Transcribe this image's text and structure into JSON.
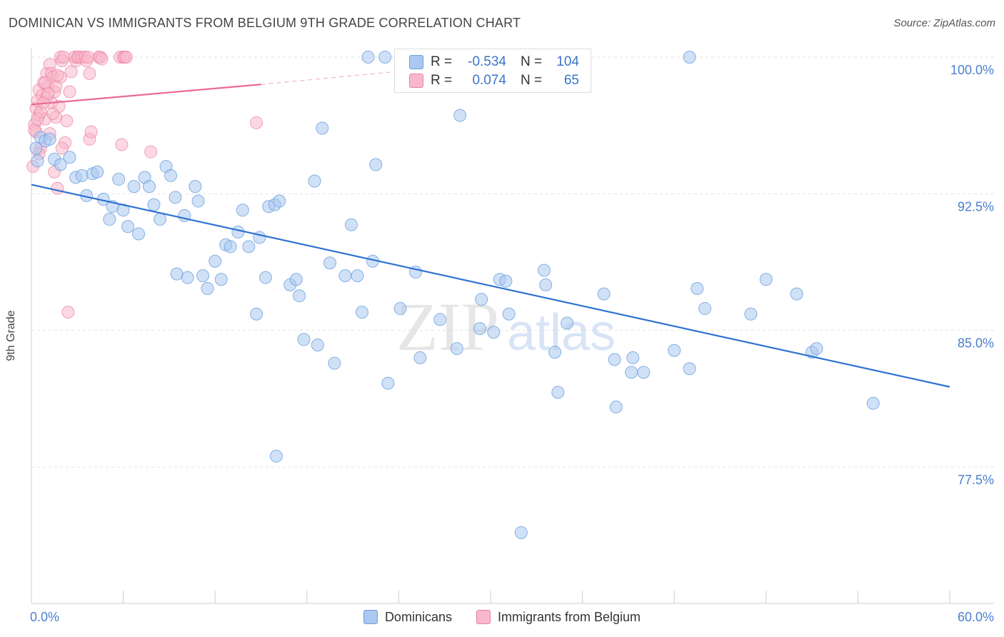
{
  "title": "DOMINICAN VS IMMIGRANTS FROM BELGIUM 9TH GRADE CORRELATION CHART",
  "source": "Source: ZipAtlas.com",
  "watermark": {
    "part1": "ZIP",
    "part2": "atlas"
  },
  "colors": {
    "blue_fill": "#aac8f0",
    "blue_stroke": "#6c9fdc",
    "blue_line": "#2f73d0",
    "pink_fill": "#f7b8cb",
    "pink_stroke": "#ec7fa2",
    "pink_line": "#ea6a94",
    "tick_label": "#4a7fcf",
    "grid": "#e3e3e3"
  },
  "stats_legend": [
    {
      "r_label": "R =",
      "r_value": "-0.534",
      "n_label": "N =",
      "n_value": "104"
    },
    {
      "r_label": "R =",
      "r_value": "0.074",
      "n_label": "N =",
      "n_value": "65"
    }
  ],
  "chart_data": {
    "type": "scatter",
    "title": "DOMINICAN VS IMMIGRANTS FROM BELGIUM 9TH GRADE CORRELATION CHART",
    "xlabel": "",
    "ylabel": "9th Grade",
    "xlim": [
      0,
      60
    ],
    "ylim": [
      70.5,
      101.2
    ],
    "x_tick_labels": [
      "0.0%",
      "60.0%"
    ],
    "y_ticks": [
      77.5,
      85.0,
      92.5,
      100.0
    ],
    "y_tick_labels": [
      "77.5%",
      "85.0%",
      "92.5%",
      "100.0%"
    ],
    "grid": true,
    "legend_position": "bottom",
    "series": [
      {
        "name": "Dominicans",
        "color": "#aac8f0",
        "trend": {
          "x": [
            0,
            60
          ],
          "y": [
            93.0,
            81.9
          ]
        },
        "points": [
          [
            0.3,
            95.0
          ],
          [
            0.4,
            94.3
          ],
          [
            0.6,
            95.6
          ],
          [
            0.9,
            95.4
          ],
          [
            1.2,
            95.5
          ],
          [
            1.5,
            94.4
          ],
          [
            1.9,
            94.1
          ],
          [
            2.5,
            94.5
          ],
          [
            2.9,
            93.4
          ],
          [
            3.3,
            93.5
          ],
          [
            3.6,
            92.4
          ],
          [
            4.0,
            93.6
          ],
          [
            4.3,
            93.7
          ],
          [
            4.7,
            92.2
          ],
          [
            5.1,
            91.1
          ],
          [
            5.3,
            91.8
          ],
          [
            5.7,
            93.3
          ],
          [
            6.0,
            91.6
          ],
          [
            6.3,
            90.7
          ],
          [
            6.7,
            92.9
          ],
          [
            7.0,
            90.3
          ],
          [
            7.4,
            93.4
          ],
          [
            7.7,
            92.9
          ],
          [
            8.0,
            91.9
          ],
          [
            8.4,
            91.1
          ],
          [
            8.8,
            94.0
          ],
          [
            9.1,
            93.5
          ],
          [
            9.4,
            92.3
          ],
          [
            9.5,
            88.1
          ],
          [
            10.0,
            91.3
          ],
          [
            10.2,
            87.9
          ],
          [
            10.7,
            92.9
          ],
          [
            10.9,
            92.1
          ],
          [
            11.2,
            88.0
          ],
          [
            11.5,
            87.3
          ],
          [
            12.0,
            88.8
          ],
          [
            12.4,
            87.8
          ],
          [
            12.7,
            89.7
          ],
          [
            13.0,
            89.6
          ],
          [
            13.5,
            90.4
          ],
          [
            13.8,
            91.6
          ],
          [
            14.2,
            89.6
          ],
          [
            14.7,
            85.9
          ],
          [
            14.9,
            90.1
          ],
          [
            15.3,
            87.9
          ],
          [
            15.5,
            91.8
          ],
          [
            15.9,
            91.9
          ],
          [
            16.2,
            92.1
          ],
          [
            16.0,
            78.1
          ],
          [
            16.9,
            87.5
          ],
          [
            17.3,
            87.8
          ],
          [
            17.5,
            86.9
          ],
          [
            17.8,
            84.5
          ],
          [
            18.5,
            93.2
          ],
          [
            18.7,
            84.2
          ],
          [
            19.0,
            96.1
          ],
          [
            19.5,
            88.7
          ],
          [
            19.8,
            83.2
          ],
          [
            20.5,
            88.0
          ],
          [
            20.9,
            90.8
          ],
          [
            21.3,
            88.0
          ],
          [
            21.6,
            86.0
          ],
          [
            22.3,
            88.8
          ],
          [
            22.5,
            94.1
          ],
          [
            22.0,
            100.0
          ],
          [
            23.1,
            100.0
          ],
          [
            23.3,
            82.1
          ],
          [
            24.1,
            86.2
          ],
          [
            25.1,
            88.2
          ],
          [
            25.4,
            83.5
          ],
          [
            26.7,
            85.6
          ],
          [
            27.8,
            84.0
          ],
          [
            28.0,
            96.8
          ],
          [
            29.3,
            85.1
          ],
          [
            29.4,
            86.7
          ],
          [
            30.2,
            84.9
          ],
          [
            30.6,
            87.8
          ],
          [
            31.0,
            87.7
          ],
          [
            31.2,
            85.9
          ],
          [
            32.0,
            73.9
          ],
          [
            32.4,
            100.0
          ],
          [
            33.5,
            88.3
          ],
          [
            33.6,
            87.5
          ],
          [
            34.2,
            83.8
          ],
          [
            34.4,
            81.6
          ],
          [
            35.0,
            85.4
          ],
          [
            37.4,
            87.0
          ],
          [
            38.1,
            83.4
          ],
          [
            38.2,
            80.8
          ],
          [
            39.2,
            82.7
          ],
          [
            39.3,
            83.5
          ],
          [
            40.0,
            82.7
          ],
          [
            42.0,
            83.9
          ],
          [
            43.0,
            82.9
          ],
          [
            43.0,
            100.0
          ],
          [
            43.5,
            87.3
          ],
          [
            44.0,
            86.2
          ],
          [
            47.0,
            85.9
          ],
          [
            48.0,
            87.8
          ],
          [
            50.0,
            87.0
          ],
          [
            51.0,
            83.8
          ],
          [
            51.3,
            84.0
          ],
          [
            55.0,
            81.0
          ]
        ]
      },
      {
        "name": "Immigrants from Belgium",
        "color": "#f7b8cb",
        "trend": {
          "x": [
            0,
            15
          ],
          "y": [
            97.4,
            98.5
          ]
        },
        "trend_dashed": {
          "x": [
            15,
            35
          ],
          "y": [
            98.5,
            100.1
          ]
        },
        "points": [
          [
            0.1,
            94.0
          ],
          [
            0.2,
            96.3
          ],
          [
            0.3,
            97.2
          ],
          [
            0.3,
            95.9
          ],
          [
            0.4,
            97.6
          ],
          [
            0.5,
            98.2
          ],
          [
            0.5,
            96.8
          ],
          [
            0.6,
            95.0
          ],
          [
            0.7,
            97.9
          ],
          [
            0.8,
            98.6
          ],
          [
            0.9,
            96.6
          ],
          [
            1.0,
            99.1
          ],
          [
            1.0,
            97.8
          ],
          [
            1.1,
            98.4
          ],
          [
            1.2,
            99.6
          ],
          [
            1.3,
            99.1
          ],
          [
            1.3,
            97.5
          ],
          [
            1.4,
            98.9
          ],
          [
            1.5,
            93.7
          ],
          [
            1.5,
            98.1
          ],
          [
            1.6,
            96.7
          ],
          [
            1.6,
            98.4
          ],
          [
            1.7,
            92.8
          ],
          [
            1.8,
            97.3
          ],
          [
            1.9,
            100.0
          ],
          [
            1.9,
            98.9
          ],
          [
            2.0,
            99.8
          ],
          [
            2.1,
            100.0
          ],
          [
            2.2,
            95.3
          ],
          [
            2.3,
            96.5
          ],
          [
            2.4,
            86.0
          ],
          [
            2.5,
            98.1
          ],
          [
            2.6,
            99.2
          ],
          [
            2.8,
            100.0
          ],
          [
            2.9,
            99.8
          ],
          [
            3.0,
            100.0
          ],
          [
            3.1,
            100.0
          ],
          [
            3.3,
            100.0
          ],
          [
            3.5,
            100.0
          ],
          [
            3.6,
            99.8
          ],
          [
            3.7,
            100.0
          ],
          [
            3.8,
            99.1
          ],
          [
            3.8,
            95.5
          ],
          [
            3.9,
            95.9
          ],
          [
            4.4,
            100.0
          ],
          [
            4.5,
            100.0
          ],
          [
            4.6,
            99.9
          ],
          [
            5.8,
            100.0
          ],
          [
            5.9,
            95.2
          ],
          [
            6.0,
            100.0
          ],
          [
            6.1,
            100.0
          ],
          [
            6.2,
            100.0
          ],
          [
            7.8,
            94.8
          ],
          [
            14.7,
            96.4
          ],
          [
            0.2,
            96.0
          ],
          [
            0.4,
            96.6
          ],
          [
            0.6,
            97.0
          ],
          [
            0.8,
            97.5
          ],
          [
            1.1,
            98.0
          ],
          [
            1.4,
            96.9
          ],
          [
            1.7,
            99.0
          ],
          [
            2.0,
            95.0
          ],
          [
            0.5,
            94.7
          ],
          [
            1.2,
            95.8
          ],
          [
            0.9,
            98.6
          ]
        ]
      }
    ]
  },
  "legend_bottom": [
    {
      "label": "Dominicans"
    },
    {
      "label": "Immigrants from Belgium"
    }
  ]
}
